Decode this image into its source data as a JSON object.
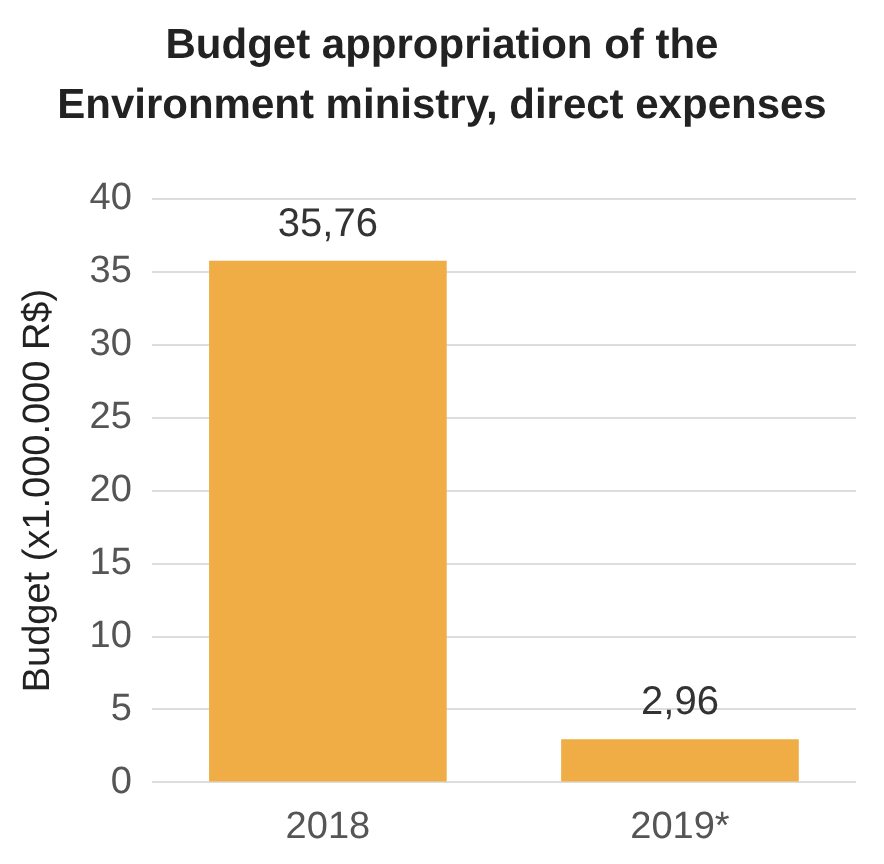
{
  "chart_data": {
    "type": "bar",
    "title": "Budget appropriation of the Environment ministry, direct expenses",
    "ylabel": "Budget (x1.000.000 R$)",
    "categories": [
      "2018",
      "2019*"
    ],
    "values": [
      35.76,
      2.96
    ],
    "value_labels": [
      "35,76",
      "2,96"
    ],
    "color": "#f0ad45",
    "ylim": [
      0,
      40
    ],
    "yticks": [
      0,
      5,
      10,
      15,
      20,
      25,
      30,
      35,
      40
    ],
    "grid": "y",
    "legend": false
  }
}
